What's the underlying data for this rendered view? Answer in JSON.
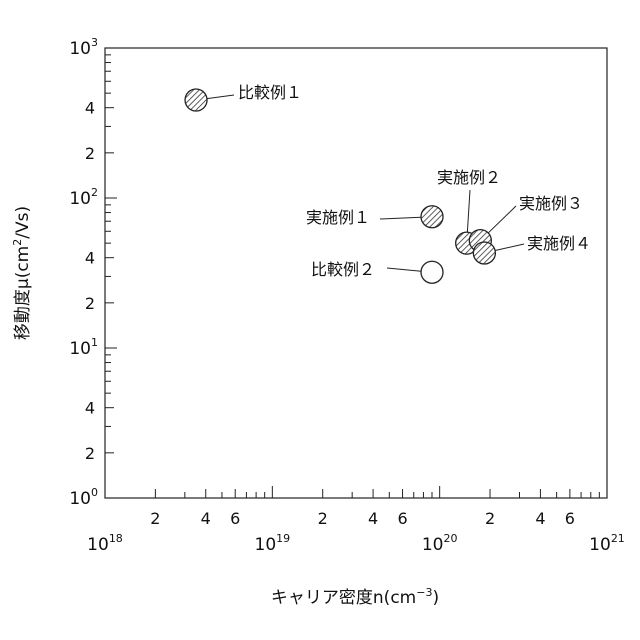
{
  "chart_data": {
    "type": "scatter",
    "xscale": "log",
    "yscale": "log",
    "xlim": [
      1e+18,
      1e+21
    ],
    "ylim": [
      1,
      1000
    ],
    "xlabel": "キャリア密度n(cm",
    "xlabel_unit_sup": "−3",
    "xlabel_close": ")",
    "ylabel": "移動度μ(cm",
    "ylabel_unit_sup": "2",
    "ylabel_close": "/Vs)",
    "x_major_ticks": [
      {
        "value": 1e+18,
        "base": "10",
        "exp": "18"
      },
      {
        "value": 1e+19,
        "base": "10",
        "exp": "19"
      },
      {
        "value": 1e+20,
        "base": "10",
        "exp": "20"
      },
      {
        "value": 1e+21,
        "base": "10",
        "exp": "21"
      }
    ],
    "y_major_ticks": [
      {
        "value": 1,
        "base": "10",
        "exp": "0"
      },
      {
        "value": 10,
        "base": "10",
        "exp": "1"
      },
      {
        "value": 100,
        "base": "10",
        "exp": "2"
      },
      {
        "value": 1000,
        "base": "10",
        "exp": "3"
      }
    ],
    "minor_labels": [
      "2",
      "4",
      "6"
    ],
    "y_minor_labels": [
      "2",
      "4"
    ],
    "series": [
      {
        "name": "比較例１",
        "x": 3.5e+18,
        "y": 450,
        "fill": "hatched"
      },
      {
        "name": "実施例１",
        "x": 9e+19,
        "y": 75,
        "fill": "hatched"
      },
      {
        "name": "実施例２",
        "x": 1.45e+20,
        "y": 50,
        "fill": "hatched"
      },
      {
        "name": "実施例３",
        "x": 1.75e+20,
        "y": 52,
        "fill": "hatched"
      },
      {
        "name": "実施例４",
        "x": 1.85e+20,
        "y": 43,
        "fill": "hatched"
      },
      {
        "name": "比較例２",
        "x": 9e+19,
        "y": 32,
        "fill": "open"
      }
    ]
  }
}
